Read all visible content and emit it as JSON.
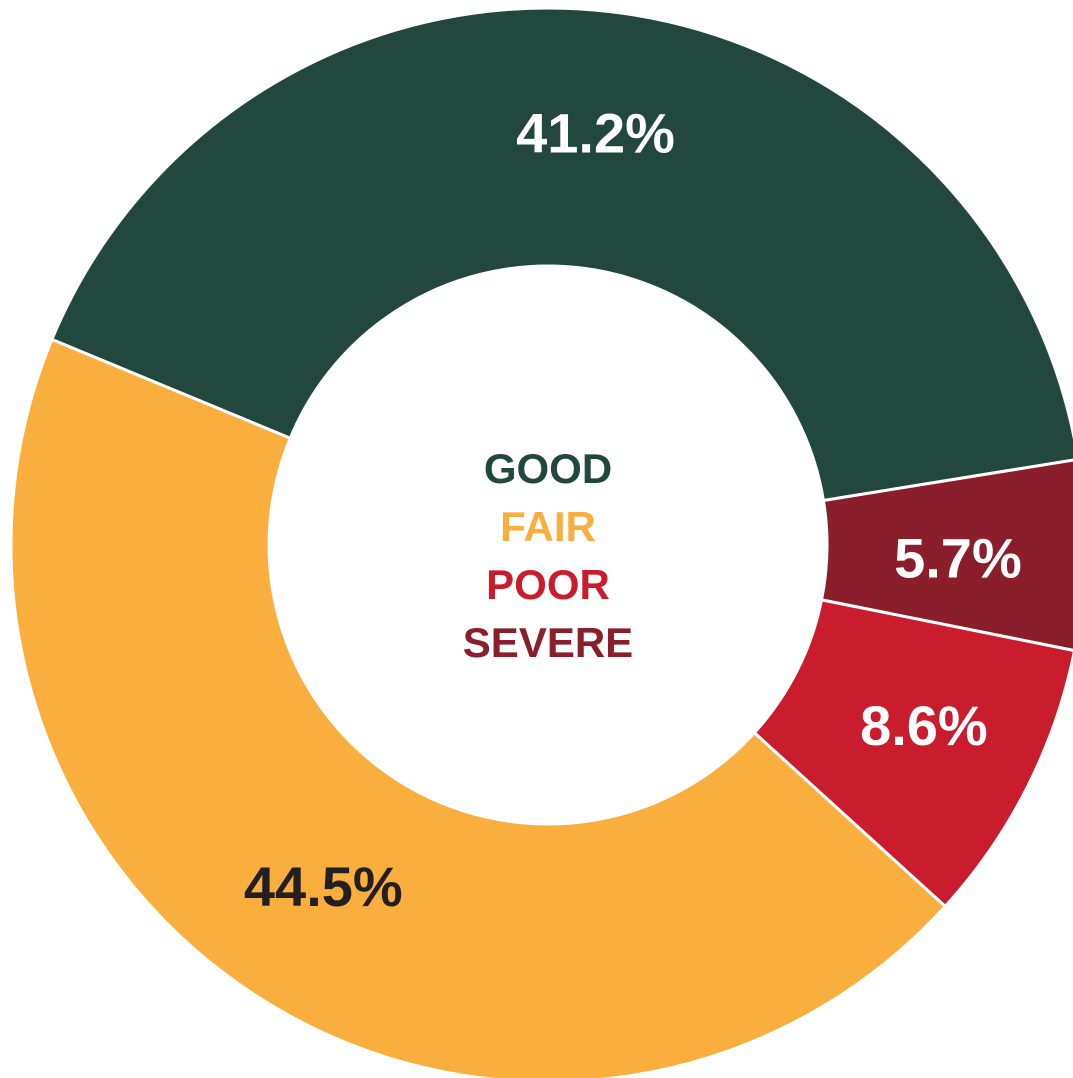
{
  "chart_data": {
    "type": "pie",
    "variant": "donut",
    "categories": [
      "GOOD",
      "SEVERE",
      "POOR",
      "FAIR"
    ],
    "values": [
      41.2,
      5.7,
      8.6,
      44.5
    ],
    "labels": [
      "41.2%",
      "5.7%",
      "8.6%",
      "44.5%"
    ],
    "colors": [
      "#22483d",
      "#8a1f2b",
      "#c91c2d",
      "#f9ae3e"
    ],
    "label_colors": [
      "#ffffff",
      "#ffffff",
      "#ffffff",
      "#231f20"
    ],
    "start_angle_deg": -67.5,
    "legend": {
      "placement": "center",
      "items": [
        {
          "label": "GOOD",
          "color": "#22483d"
        },
        {
          "label": "FAIR",
          "color": "#f9ae3e"
        },
        {
          "label": "POOR",
          "color": "#c91c2d"
        },
        {
          "label": "SEVERE",
          "color": "#8a1f2b"
        }
      ]
    }
  }
}
